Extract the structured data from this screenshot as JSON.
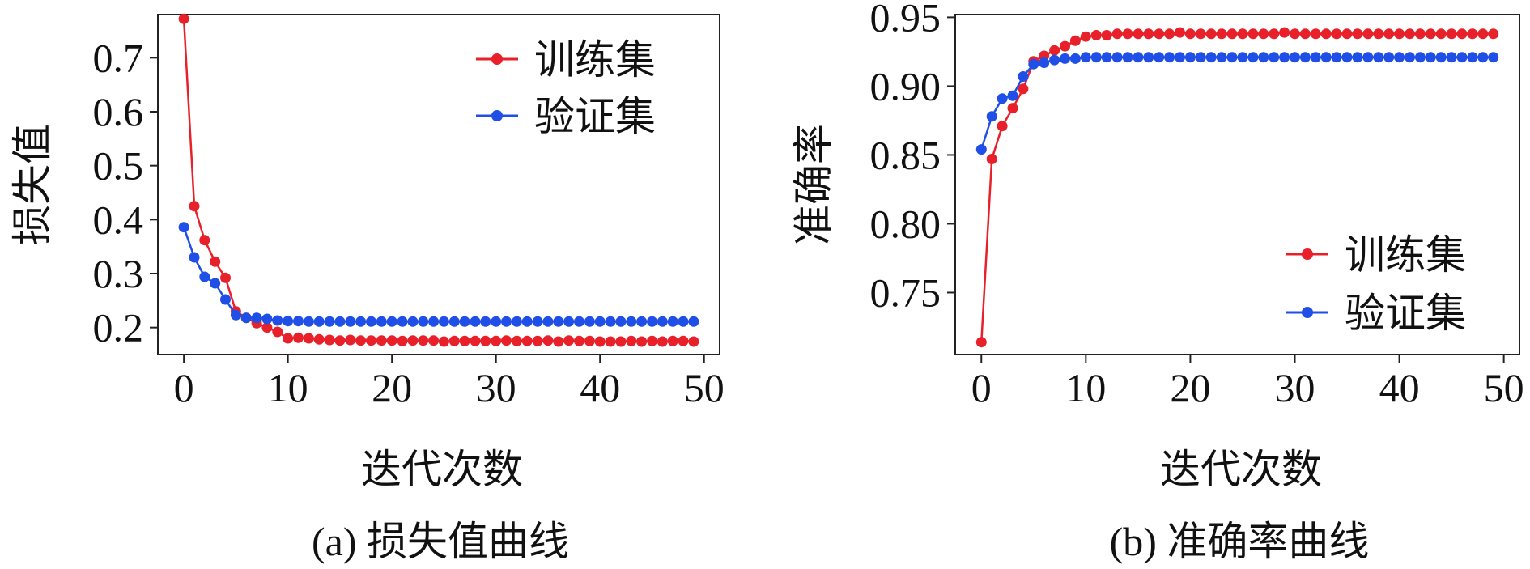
{
  "chart_data": [
    {
      "id": "loss",
      "type": "line",
      "caption": "(a) 损失值曲线",
      "xlabel": "迭代次数",
      "ylabel": "损失值",
      "xlim": [
        -2.5,
        51.5
      ],
      "ylim": [
        0.15,
        0.78
      ],
      "xticks": [
        0,
        10,
        20,
        30,
        40,
        50
      ],
      "xtick_labels": [
        "0",
        "10",
        "20",
        "30",
        "40",
        "50"
      ],
      "yticks": [
        0.2,
        0.3,
        0.4,
        0.5,
        0.6,
        0.7
      ],
      "ytick_labels": [
        "0.2",
        "0.3",
        "0.4",
        "0.5",
        "0.6",
        "0.7"
      ],
      "legend_position": "top-right",
      "x": [
        0,
        1,
        2,
        3,
        4,
        5,
        6,
        7,
        8,
        9,
        10,
        11,
        12,
        13,
        14,
        15,
        16,
        17,
        18,
        19,
        20,
        21,
        22,
        23,
        24,
        25,
        26,
        27,
        28,
        29,
        30,
        31,
        32,
        33,
        34,
        35,
        36,
        37,
        38,
        39,
        40,
        41,
        42,
        43,
        44,
        45,
        46,
        47,
        48,
        49
      ],
      "series": [
        {
          "name": "训练集",
          "color": "#e8202a",
          "values": [
            0.772,
            0.425,
            0.362,
            0.322,
            0.292,
            0.23,
            0.218,
            0.208,
            0.2,
            0.192,
            0.18,
            0.181,
            0.18,
            0.178,
            0.177,
            0.176,
            0.177,
            0.176,
            0.176,
            0.176,
            0.176,
            0.175,
            0.176,
            0.176,
            0.176,
            0.174,
            0.175,
            0.175,
            0.175,
            0.175,
            0.175,
            0.176,
            0.175,
            0.175,
            0.175,
            0.176,
            0.174,
            0.176,
            0.175,
            0.175,
            0.174,
            0.174,
            0.174,
            0.175,
            0.174,
            0.175,
            0.174,
            0.175,
            0.175,
            0.174
          ]
        },
        {
          "name": "验证集",
          "color": "#1f4fe6",
          "values": [
            0.386,
            0.33,
            0.294,
            0.282,
            0.252,
            0.223,
            0.218,
            0.218,
            0.216,
            0.213,
            0.212,
            0.212,
            0.211,
            0.211,
            0.211,
            0.211,
            0.211,
            0.211,
            0.211,
            0.211,
            0.211,
            0.211,
            0.211,
            0.211,
            0.211,
            0.211,
            0.211,
            0.211,
            0.211,
            0.211,
            0.211,
            0.211,
            0.211,
            0.211,
            0.211,
            0.211,
            0.211,
            0.211,
            0.211,
            0.211,
            0.211,
            0.211,
            0.211,
            0.211,
            0.211,
            0.211,
            0.211,
            0.211,
            0.211,
            0.211
          ]
        }
      ]
    },
    {
      "id": "accuracy",
      "type": "line",
      "caption": "(b) 准确率曲线",
      "xlabel": "迭代次数",
      "ylabel": "准确率",
      "xlim": [
        -2.5,
        51.5
      ],
      "ylim": [
        0.705,
        0.952
      ],
      "xticks": [
        0,
        10,
        20,
        30,
        40,
        50
      ],
      "xtick_labels": [
        "0",
        "10",
        "20",
        "30",
        "40",
        "50"
      ],
      "yticks": [
        0.75,
        0.8,
        0.85,
        0.9,
        0.95
      ],
      "ytick_labels": [
        "0.75",
        "0.80",
        "0.85",
        "0.90",
        "0.95"
      ],
      "legend_position": "bottom-right",
      "x": [
        0,
        1,
        2,
        3,
        4,
        5,
        6,
        7,
        8,
        9,
        10,
        11,
        12,
        13,
        14,
        15,
        16,
        17,
        18,
        19,
        20,
        21,
        22,
        23,
        24,
        25,
        26,
        27,
        28,
        29,
        30,
        31,
        32,
        33,
        34,
        35,
        36,
        37,
        38,
        39,
        40,
        41,
        42,
        43,
        44,
        45,
        46,
        47,
        48,
        49
      ],
      "series": [
        {
          "name": "训练集",
          "color": "#e8202a",
          "values": [
            0.714,
            0.847,
            0.871,
            0.884,
            0.898,
            0.918,
            0.922,
            0.926,
            0.929,
            0.933,
            0.936,
            0.937,
            0.937,
            0.938,
            0.938,
            0.938,
            0.938,
            0.938,
            0.938,
            0.939,
            0.938,
            0.938,
            0.938,
            0.938,
            0.938,
            0.938,
            0.938,
            0.938,
            0.938,
            0.939,
            0.938,
            0.938,
            0.938,
            0.938,
            0.938,
            0.938,
            0.938,
            0.938,
            0.938,
            0.938,
            0.938,
            0.938,
            0.938,
            0.938,
            0.938,
            0.938,
            0.938,
            0.938,
            0.938,
            0.938
          ]
        },
        {
          "name": "验证集",
          "color": "#1f4fe6",
          "values": [
            0.854,
            0.878,
            0.891,
            0.893,
            0.907,
            0.916,
            0.917,
            0.919,
            0.92,
            0.92,
            0.921,
            0.921,
            0.921,
            0.921,
            0.921,
            0.921,
            0.921,
            0.921,
            0.921,
            0.921,
            0.921,
            0.921,
            0.921,
            0.921,
            0.921,
            0.921,
            0.921,
            0.921,
            0.921,
            0.921,
            0.921,
            0.921,
            0.921,
            0.921,
            0.921,
            0.921,
            0.921,
            0.921,
            0.921,
            0.921,
            0.921,
            0.921,
            0.921,
            0.921,
            0.921,
            0.921,
            0.921,
            0.921,
            0.921,
            0.921
          ]
        }
      ]
    }
  ]
}
